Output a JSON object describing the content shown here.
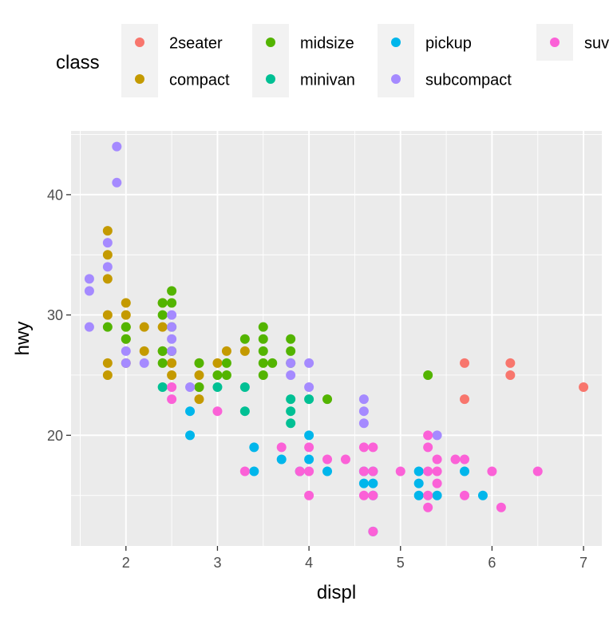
{
  "chart_data": {
    "type": "scatter",
    "title": "",
    "xlabel": "displ",
    "ylabel": "hwy",
    "xlim": [
      1.4,
      7.2
    ],
    "ylim": [
      10.8,
      45.3
    ],
    "x_ticks": [
      2,
      3,
      4,
      5,
      6,
      7
    ],
    "x_tick_labels": [
      "2",
      "3",
      "4",
      "5",
      "6",
      "7"
    ],
    "y_ticks": [
      20,
      30,
      40
    ],
    "y_tick_labels": [
      "20",
      "30",
      "40"
    ],
    "grid": true,
    "legend": {
      "title": "class",
      "placement": "top",
      "entries": [
        "2seater",
        "compact",
        "midsize",
        "minivan",
        "pickup",
        "subcompact",
        "suv"
      ]
    },
    "colors": {
      "2seater": "#F8766D",
      "compact": "#C49A00",
      "midsize": "#53B400",
      "minivan": "#00C094",
      "pickup": "#00B6EB",
      "subcompact": "#A58AFF",
      "suv": "#FB61D7"
    },
    "series": [
      {
        "name": "2seater",
        "points": [
          [
            5.7,
            26
          ],
          [
            5.7,
            23
          ],
          [
            6.2,
            26
          ],
          [
            6.2,
            25
          ],
          [
            7.0,
            24
          ]
        ]
      },
      {
        "name": "compact",
        "points": [
          [
            1.8,
            37
          ],
          [
            1.8,
            35
          ],
          [
            1.8,
            33
          ],
          [
            1.8,
            30
          ],
          [
            1.8,
            26
          ],
          [
            1.8,
            25
          ],
          [
            2.0,
            31
          ],
          [
            2.0,
            30
          ],
          [
            2.0,
            29
          ],
          [
            2.0,
            28
          ],
          [
            2.0,
            26
          ],
          [
            2.2,
            29
          ],
          [
            2.2,
            27
          ],
          [
            2.4,
            31
          ],
          [
            2.4,
            29
          ],
          [
            2.4,
            27
          ],
          [
            2.5,
            27
          ],
          [
            2.5,
            26
          ],
          [
            2.5,
            25
          ],
          [
            2.8,
            26
          ],
          [
            2.8,
            25
          ],
          [
            2.8,
            24
          ],
          [
            2.8,
            23
          ],
          [
            3.0,
            26
          ],
          [
            3.1,
            27
          ],
          [
            3.3,
            27
          ]
        ]
      },
      {
        "name": "midsize",
        "points": [
          [
            1.8,
            29
          ],
          [
            2.0,
            29
          ],
          [
            2.0,
            28
          ],
          [
            2.4,
            31
          ],
          [
            2.4,
            30
          ],
          [
            2.4,
            27
          ],
          [
            2.4,
            26
          ],
          [
            2.5,
            32
          ],
          [
            2.5,
            31
          ],
          [
            2.5,
            29
          ],
          [
            2.5,
            27
          ],
          [
            2.8,
            26
          ],
          [
            2.8,
            24
          ],
          [
            3.0,
            25
          ],
          [
            3.1,
            26
          ],
          [
            3.1,
            25
          ],
          [
            3.3,
            28
          ],
          [
            3.5,
            29
          ],
          [
            3.5,
            28
          ],
          [
            3.5,
            27
          ],
          [
            3.5,
            26
          ],
          [
            3.5,
            25
          ],
          [
            3.6,
            26
          ],
          [
            3.8,
            28
          ],
          [
            3.8,
            27
          ],
          [
            3.8,
            26
          ],
          [
            4.2,
            23
          ],
          [
            5.3,
            25
          ]
        ]
      },
      {
        "name": "minivan",
        "points": [
          [
            2.4,
            24
          ],
          [
            3.0,
            24
          ],
          [
            3.3,
            24
          ],
          [
            3.3,
            22
          ],
          [
            3.8,
            23
          ],
          [
            3.8,
            22
          ],
          [
            3.8,
            21
          ],
          [
            4.0,
            23
          ]
        ]
      },
      {
        "name": "pickup",
        "points": [
          [
            2.7,
            22
          ],
          [
            2.7,
            20
          ],
          [
            3.4,
            19
          ],
          [
            3.4,
            17
          ],
          [
            3.7,
            18
          ],
          [
            3.9,
            17
          ],
          [
            4.0,
            20
          ],
          [
            4.0,
            18
          ],
          [
            4.2,
            17
          ],
          [
            4.6,
            17
          ],
          [
            4.6,
            16
          ],
          [
            4.7,
            17
          ],
          [
            4.7,
            16
          ],
          [
            4.7,
            15
          ],
          [
            4.7,
            12
          ],
          [
            5.2,
            17
          ],
          [
            5.2,
            16
          ],
          [
            5.2,
            15
          ],
          [
            5.4,
            15
          ],
          [
            5.7,
            17
          ],
          [
            5.9,
            15
          ]
        ]
      },
      {
        "name": "subcompact",
        "points": [
          [
            1.6,
            33
          ],
          [
            1.6,
            32
          ],
          [
            1.6,
            29
          ],
          [
            1.8,
            36
          ],
          [
            1.8,
            34
          ],
          [
            1.9,
            44
          ],
          [
            1.9,
            41
          ],
          [
            2.0,
            27
          ],
          [
            2.0,
            26
          ],
          [
            2.2,
            26
          ],
          [
            2.5,
            30
          ],
          [
            2.5,
            29
          ],
          [
            2.5,
            28
          ],
          [
            2.5,
            27
          ],
          [
            2.7,
            24
          ],
          [
            3.8,
            26
          ],
          [
            3.8,
            25
          ],
          [
            4.0,
            26
          ],
          [
            4.0,
            24
          ],
          [
            4.6,
            23
          ],
          [
            4.6,
            22
          ],
          [
            4.6,
            21
          ],
          [
            5.4,
            20
          ]
        ]
      },
      {
        "name": "suv",
        "points": [
          [
            2.5,
            24
          ],
          [
            2.5,
            23
          ],
          [
            3.0,
            22
          ],
          [
            3.3,
            17
          ],
          [
            3.7,
            19
          ],
          [
            3.9,
            17
          ],
          [
            4.0,
            19
          ],
          [
            4.0,
            17
          ],
          [
            4.0,
            15
          ],
          [
            4.2,
            18
          ],
          [
            4.4,
            18
          ],
          [
            4.6,
            19
          ],
          [
            4.6,
            17
          ],
          [
            4.6,
            15
          ],
          [
            4.7,
            19
          ],
          [
            4.7,
            17
          ],
          [
            4.7,
            15
          ],
          [
            4.7,
            12
          ],
          [
            5.0,
            17
          ],
          [
            5.3,
            20
          ],
          [
            5.3,
            19
          ],
          [
            5.3,
            17
          ],
          [
            5.3,
            15
          ],
          [
            5.3,
            14
          ],
          [
            5.4,
            18
          ],
          [
            5.4,
            17
          ],
          [
            5.4,
            16
          ],
          [
            5.6,
            18
          ],
          [
            5.7,
            18
          ],
          [
            5.7,
            15
          ],
          [
            6.0,
            17
          ],
          [
            6.1,
            14
          ],
          [
            6.5,
            17
          ]
        ]
      }
    ]
  }
}
